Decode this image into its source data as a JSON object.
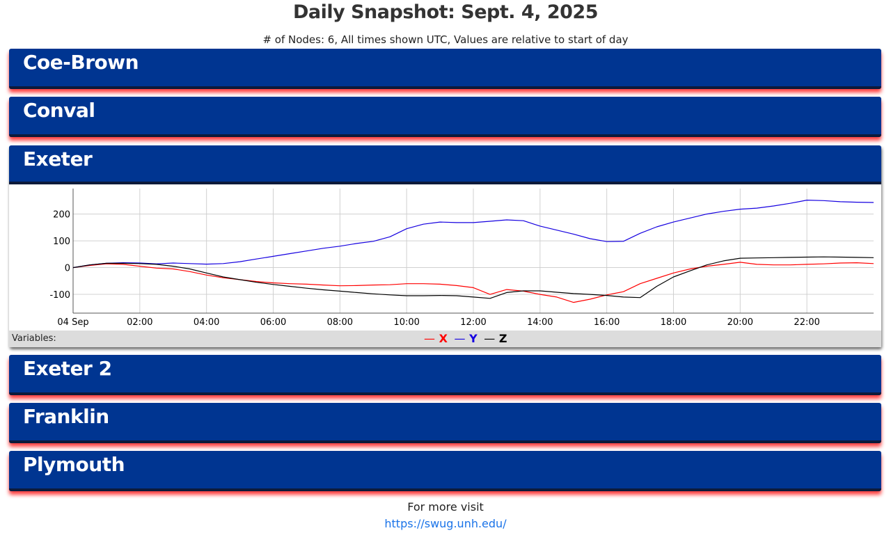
{
  "page": {
    "title": "Daily Snapshot: Sept. 4, 2025",
    "subtitle": "# of Nodes: 6, All times shown UTC, Values are relative to start of day"
  },
  "nodes": [
    {
      "name": "Coe-Brown",
      "expanded": false
    },
    {
      "name": "Conval",
      "expanded": false
    },
    {
      "name": "Exeter",
      "expanded": true
    },
    {
      "name": "Exeter 2",
      "expanded": false
    },
    {
      "name": "Franklin",
      "expanded": false
    },
    {
      "name": "Plymouth",
      "expanded": false
    }
  ],
  "legend": {
    "label": "Variables:",
    "items": [
      {
        "symbol": "—",
        "name": "X",
        "color": "#ff0000"
      },
      {
        "symbol": "—",
        "name": "Y",
        "color": "#1500e0"
      },
      {
        "symbol": "—",
        "name": "Z",
        "color": "#000000"
      }
    ]
  },
  "chart_data": {
    "type": "line",
    "title": "",
    "xlabel": "",
    "ylabel": "",
    "x_tick_labels": [
      "04 Sep",
      "02:00",
      "04:00",
      "06:00",
      "08:00",
      "10:00",
      "12:00",
      "14:00",
      "16:00",
      "18:00",
      "20:00",
      "22:00"
    ],
    "y_ticks": [
      200,
      100,
      0,
      -100
    ],
    "xlim": [
      "2025-09-04T00:00Z",
      "2025-09-04T24:00Z"
    ],
    "ylim": [
      -170,
      295
    ],
    "grid": true,
    "x_hours": [
      0,
      0.5,
      1,
      1.5,
      2,
      2.5,
      3,
      3.5,
      4,
      4.5,
      5,
      5.5,
      6,
      6.5,
      7,
      7.5,
      8,
      8.5,
      9,
      9.5,
      10,
      10.5,
      11,
      11.5,
      12,
      12.5,
      13,
      13.5,
      14,
      14.5,
      15,
      15.5,
      16,
      16.5,
      17,
      17.5,
      18,
      18.5,
      19,
      19.5,
      20,
      20.5,
      21,
      21.5,
      22,
      22.5,
      23,
      23.5,
      24
    ],
    "series": [
      {
        "name": "X",
        "color": "#ff0000",
        "values": [
          0,
          8,
          14,
          12,
          5,
          -2,
          -5,
          -15,
          -28,
          -38,
          -45,
          -52,
          -57,
          -60,
          -62,
          -65,
          -68,
          -67,
          -65,
          -64,
          -60,
          -60,
          -62,
          -67,
          -75,
          -100,
          -82,
          -88,
          -100,
          -110,
          -130,
          -118,
          -102,
          -90,
          -60,
          -40,
          -20,
          -5,
          5,
          12,
          20,
          12,
          10,
          10,
          12,
          14,
          17,
          18,
          15
        ]
      },
      {
        "name": "Y",
        "color": "#1500e0",
        "values": [
          0,
          10,
          16,
          18,
          17,
          14,
          17,
          15,
          13,
          15,
          22,
          32,
          42,
          52,
          62,
          72,
          80,
          90,
          98,
          115,
          145,
          162,
          170,
          168,
          168,
          173,
          178,
          175,
          155,
          140,
          125,
          108,
          97,
          98,
          128,
          152,
          170,
          185,
          200,
          210,
          218,
          222,
          230,
          240,
          252,
          250,
          246,
          244,
          243
        ]
      },
      {
        "name": "Z",
        "color": "#000000",
        "values": [
          0,
          10,
          16,
          16,
          15,
          12,
          5,
          -5,
          -20,
          -35,
          -45,
          -55,
          -63,
          -70,
          -77,
          -83,
          -88,
          -93,
          -98,
          -102,
          -105,
          -105,
          -104,
          -105,
          -110,
          -115,
          -93,
          -87,
          -87,
          -92,
          -97,
          -100,
          -104,
          -110,
          -112,
          -70,
          -35,
          -12,
          10,
          25,
          35,
          36,
          37,
          38,
          39,
          40,
          39,
          38,
          37
        ]
      }
    ]
  },
  "footer": {
    "text": "For more visit",
    "link_text": "https://swug.unh.edu/"
  }
}
